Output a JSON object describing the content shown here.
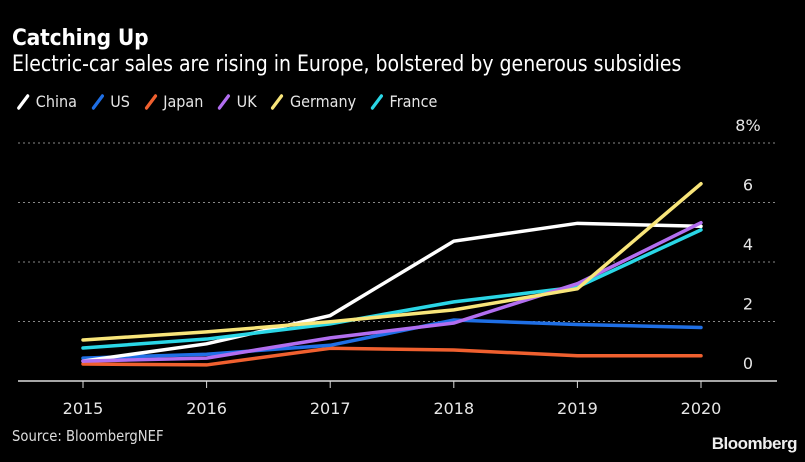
{
  "header": {
    "title": "Catching Up",
    "subtitle": "Electric-car sales are rising in Europe, bolstered by generous subsidies"
  },
  "footer": {
    "source": "Source: BloombergNEF",
    "brand": "Bloomberg"
  },
  "chart_data": {
    "type": "line",
    "title": "Catching Up",
    "subtitle": "Electric-car sales are rising in Europe, bolstered by generous subsidies",
    "xlabel": "",
    "ylabel": "",
    "x": [
      "2015",
      "2016",
      "2017",
      "2018",
      "2019",
      "2020"
    ],
    "ylim": [
      0,
      8
    ],
    "yticks": [
      0,
      2,
      4,
      6,
      8
    ],
    "ytick_labels": [
      "0",
      "2",
      "4",
      "6",
      "8%"
    ],
    "y_axis_position": "right",
    "grid": "horizontal-dotted",
    "legend_position": "top-left",
    "series": [
      {
        "name": "China",
        "color": "#ffffff",
        "values": [
          0.67,
          1.25,
          2.2,
          4.7,
          5.3,
          5.2
        ]
      },
      {
        "name": "US",
        "color": "#1f6fe5",
        "values": [
          0.77,
          0.9,
          1.2,
          2.05,
          1.9,
          1.8
        ]
      },
      {
        "name": "Japan",
        "color": "#f0602f",
        "values": [
          0.57,
          0.54,
          1.1,
          1.04,
          0.85,
          0.85
        ]
      },
      {
        "name": "UK",
        "color": "#b26ef0",
        "values": [
          0.67,
          0.77,
          1.45,
          1.95,
          3.27,
          5.32
        ]
      },
      {
        "name": "Germany",
        "color": "#f8e57a",
        "values": [
          1.38,
          1.65,
          1.99,
          2.39,
          3.1,
          6.63
        ]
      },
      {
        "name": "France",
        "color": "#2ad6e6",
        "values": [
          1.11,
          1.41,
          1.92,
          2.66,
          3.16,
          5.08
        ]
      }
    ]
  }
}
